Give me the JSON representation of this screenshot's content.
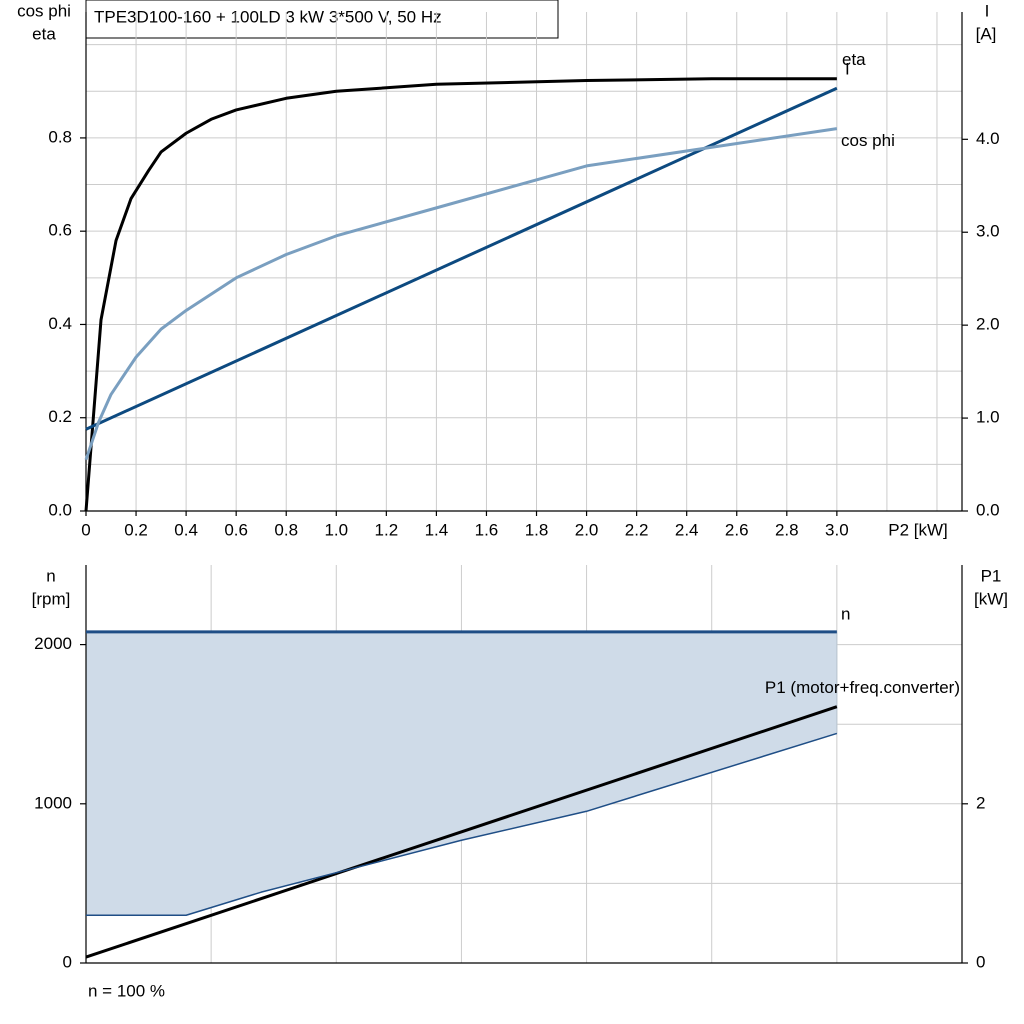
{
  "chart_data": [
    {
      "type": "line",
      "title": "TPE3D100-160 + 100LD   3 kW   3*500 V, 50 Hz",
      "y_label": [
        "cos phi",
        "eta"
      ],
      "y2_label": [
        "I",
        "[A]"
      ],
      "x_label": "P2 [kW]",
      "xlim": [
        0,
        3.5
      ],
      "xticks": [
        0,
        0.2,
        0.4,
        0.6,
        0.8,
        {
          "value": 1.0,
          "label": "1.0"
        },
        1.2,
        1.4,
        1.6,
        1.8,
        {
          "value": 2.0,
          "label": "2.0"
        },
        2.2,
        2.4,
        2.6,
        2.8,
        {
          "value": 3.0,
          "label": "3.0"
        }
      ],
      "x_grid": [
        3.2,
        3.4
      ],
      "ylim": [
        0,
        1.07
      ],
      "yticks": [
        {
          "value": 0,
          "label": "0.0"
        },
        0.2,
        0.4,
        0.6,
        0.8
      ],
      "y_grid": [
        0.1,
        0.3,
        0.5,
        0.7,
        0.9,
        1.0
      ],
      "y2lim": [
        0,
        5.37
      ],
      "y2ticks": [
        {
          "value": 0,
          "label": "0.0"
        },
        {
          "value": 1,
          "label": "1.0"
        },
        {
          "value": 2,
          "label": "2.0"
        },
        {
          "value": 3,
          "label": "3.0"
        },
        {
          "value": 4,
          "label": "4.0"
        }
      ],
      "grid": true,
      "series": [
        {
          "name": "eta",
          "color": "#000000",
          "x": [
            0,
            0.06,
            0.12,
            0.18,
            0.25,
            0.3,
            0.4,
            0.5,
            0.6,
            0.8,
            1.0,
            1.4,
            2.0,
            2.5,
            3.0
          ],
          "values": [
            0,
            0.41,
            0.58,
            0.67,
            0.73,
            0.77,
            0.81,
            0.84,
            0.86,
            0.885,
            0.9,
            0.915,
            0.923,
            0.927,
            0.927
          ]
        },
        {
          "name": "I",
          "color": "#0d4a80",
          "axis": "y2",
          "x": [
            0,
            3.0
          ],
          "values": [
            0.88,
            4.55
          ]
        },
        {
          "name": "cos phi",
          "color": "#7a9fc0",
          "x": [
            0,
            0.05,
            0.1,
            0.2,
            0.3,
            0.4,
            0.6,
            0.8,
            1.0,
            1.4,
            2.0,
            2.5,
            3.0
          ],
          "values": [
            0.11,
            0.19,
            0.25,
            0.33,
            0.39,
            0.43,
            0.5,
            0.55,
            0.59,
            0.65,
            0.74,
            0.78,
            0.82
          ]
        }
      ]
    },
    {
      "type": "line",
      "y_label": [
        "n",
        "[rpm]"
      ],
      "y2_label": [
        "P1",
        "[kW]"
      ],
      "note": "n = 100 %",
      "xlim": [
        0,
        3.5
      ],
      "x_grid": [
        0.5,
        1.0,
        1.5,
        2.0,
        2.5,
        3.0
      ],
      "ylim": [
        0,
        2500
      ],
      "yticks": [
        0,
        1000,
        2000
      ],
      "y_grid": [
        500,
        1500
      ],
      "y2lim": [
        0,
        5
      ],
      "y2ticks": [
        0,
        2
      ],
      "grid": true,
      "fill_color": "#cfdbe8",
      "series": [
        {
          "name": "n",
          "color": "#1f4e86",
          "x": [
            0,
            3.0
          ],
          "values": [
            2080,
            2080
          ]
        },
        {
          "name": "P1 (motor+freq.converter)",
          "color": "#000000",
          "axis": "y2",
          "x": [
            0,
            3.0
          ],
          "values": [
            0.075,
            3.22
          ]
        },
        {
          "color": "#1f4e86",
          "x": [
            0,
            0.4,
            0.7,
            1.5,
            2.0,
            3.0
          ],
          "values": [
            300,
            300,
            445,
            771,
            953,
            1442
          ]
        }
      ]
    }
  ]
}
